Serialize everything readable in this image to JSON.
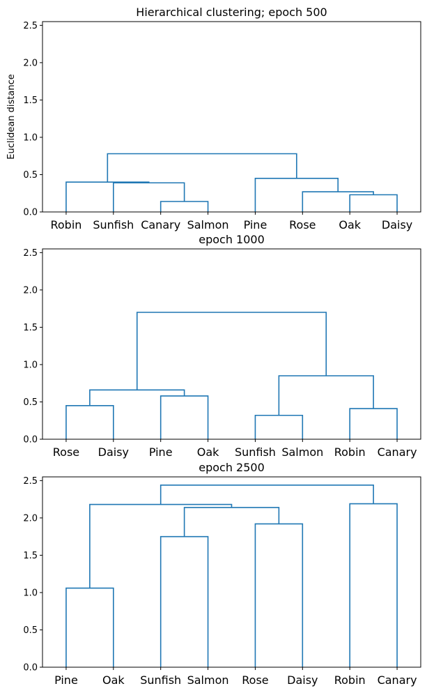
{
  "chart_data": [
    {
      "type": "dendrogram",
      "title": "Hierarchical clustering; epoch 500",
      "ylabel": "Euclidean distance",
      "ylim": [
        0,
        2.55
      ],
      "yticks": [
        "0.0",
        "0.5",
        "1.0",
        "1.5",
        "2.0",
        "2.5"
      ],
      "leaves": [
        "Robin",
        "Sunfish",
        "Canary",
        "Salmon",
        "Pine",
        "Rose",
        "Oak",
        "Daisy"
      ],
      "merges": [
        {
          "a": 2,
          "b": 3,
          "height": 0.14
        },
        {
          "a": 1,
          "b": 8,
          "height": 0.39
        },
        {
          "a": 0,
          "b": 9,
          "height": 0.4
        },
        {
          "a": 6,
          "b": 7,
          "height": 0.23
        },
        {
          "a": 5,
          "b": 11,
          "height": 0.27
        },
        {
          "a": 4,
          "b": 12,
          "height": 0.45
        },
        {
          "a": 10,
          "b": 13,
          "height": 0.78
        }
      ]
    },
    {
      "type": "dendrogram",
      "title": "epoch 1000",
      "ylabel": "",
      "ylim": [
        0,
        2.55
      ],
      "yticks": [
        "0.0",
        "0.5",
        "1.0",
        "1.5",
        "2.0",
        "2.5"
      ],
      "leaves": [
        "Rose",
        "Daisy",
        "Pine",
        "Oak",
        "Sunfish",
        "Salmon",
        "Robin",
        "Canary"
      ],
      "merges": [
        {
          "a": 0,
          "b": 1,
          "height": 0.45
        },
        {
          "a": 2,
          "b": 3,
          "height": 0.58
        },
        {
          "a": 8,
          "b": 9,
          "height": 0.66
        },
        {
          "a": 4,
          "b": 5,
          "height": 0.32
        },
        {
          "a": 6,
          "b": 7,
          "height": 0.41
        },
        {
          "a": 11,
          "b": 12,
          "height": 0.85
        },
        {
          "a": 10,
          "b": 13,
          "height": 1.7
        }
      ]
    },
    {
      "type": "dendrogram",
      "title": "epoch 2500",
      "ylabel": "",
      "ylim": [
        0,
        2.55
      ],
      "yticks": [
        "0.0",
        "0.5",
        "1.0",
        "1.5",
        "2.0",
        "2.5"
      ],
      "leaves": [
        "Pine",
        "Oak",
        "Sunfish",
        "Salmon",
        "Rose",
        "Daisy",
        "Robin",
        "Canary"
      ],
      "merges": [
        {
          "a": 0,
          "b": 1,
          "height": 1.06
        },
        {
          "a": 2,
          "b": 3,
          "height": 1.75
        },
        {
          "a": 4,
          "b": 5,
          "height": 1.92
        },
        {
          "a": 9,
          "b": 10,
          "height": 2.14
        },
        {
          "a": 8,
          "b": 11,
          "height": 2.18
        },
        {
          "a": 6,
          "b": 7,
          "height": 2.19
        },
        {
          "a": 12,
          "b": 13,
          "height": 2.44
        }
      ]
    }
  ],
  "colors": {
    "link": "#1f77b4",
    "axes": "#000000",
    "background": "#ffffff"
  }
}
